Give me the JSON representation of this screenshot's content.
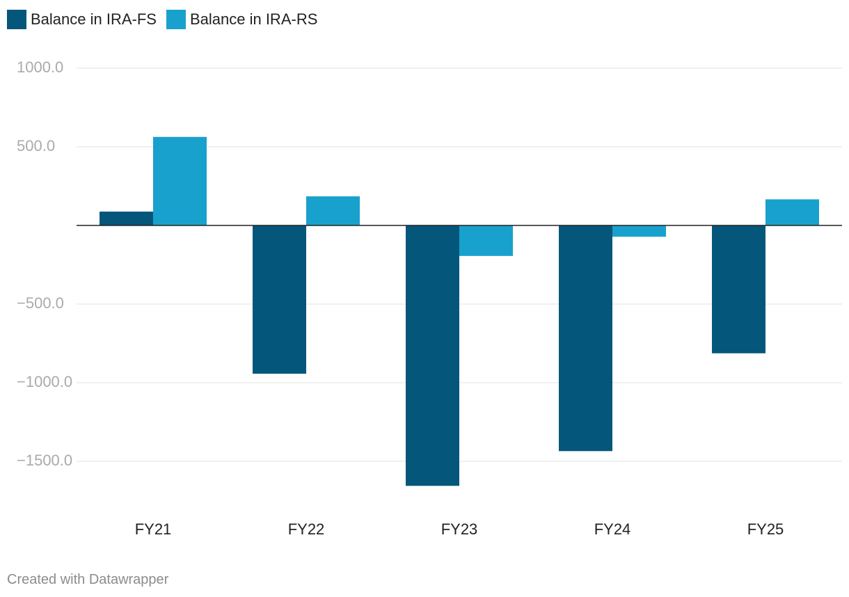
{
  "chart_data": {
    "type": "bar",
    "categories": [
      "FY21",
      "FY22",
      "FY23",
      "FY24",
      "FY25"
    ],
    "series": [
      {
        "name": "Balance in IRA-FS",
        "color": "#04567b",
        "values": [
          88,
          -943,
          -1656,
          -1435,
          -813
        ]
      },
      {
        "name": "Balance in IRA-RS",
        "color": "#19a1cd",
        "values": [
          563,
          185,
          -194,
          -72,
          166
        ]
      }
    ],
    "y_ticks": [
      1000,
      500,
      -500,
      -1000,
      -1500
    ],
    "y_tick_labels": [
      "1000.0",
      "500.0",
      "−500.0",
      "−1000.0",
      "−1500.0"
    ],
    "ylim": [
      -1650,
      1000
    ],
    "grid": true,
    "legend_position": "top-left"
  },
  "footer": {
    "credit": "Created with Datawrapper"
  }
}
